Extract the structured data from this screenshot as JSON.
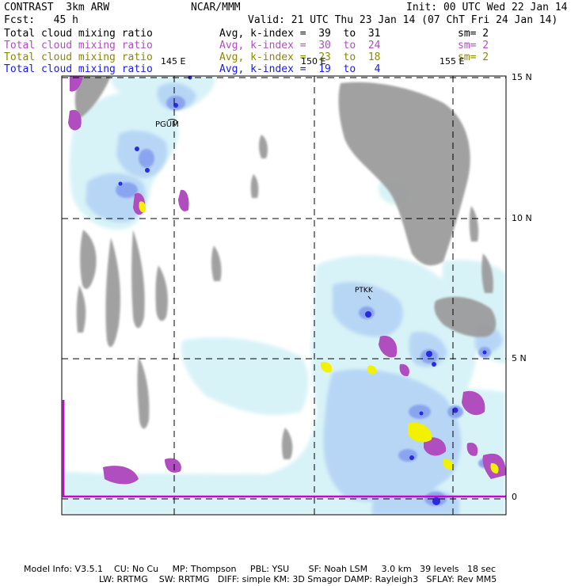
{
  "header": {
    "title": "CONTRAST  3km ARW",
    "center": "NCAR/MMM",
    "init": "Init: 00 UTC Wed 22 Jan 14",
    "fcst": "Fcst:   45 h",
    "valid": "Valid: 21 UTC Thu 23 Jan 14 (07 ChT Fri 24 Jan 14)"
  },
  "legend": [
    {
      "field": "Total cloud mixing ratio",
      "avg": "Avg, k-index =  39  to  31",
      "sm": "sm= 2",
      "color": "#000000"
    },
    {
      "field": "Total cloud mixing ratio",
      "avg": "Avg, k-index =  30  to  24",
      "sm": "sm= 2",
      "color": "#b04dbf"
    },
    {
      "field": "Total cloud mixing ratio",
      "avg": "Avg, k-index =  23  to  18",
      "sm": "sm= 2",
      "color": "#8a8a00"
    },
    {
      "field": "Total cloud mixing ratio",
      "avg": "Avg, k-index =  19  to   4",
      "sm": "",
      "color": "#1a1ae6"
    }
  ],
  "map": {
    "lon_labels": [
      "145 E",
      "150 E",
      "155 E"
    ],
    "lat_labels": [
      "15 N",
      "10 N",
      "5 N",
      "0"
    ],
    "stations": [
      "PGUM",
      "PTKK"
    ]
  },
  "footer": {
    "line1": "Model Info: V3.5.1    CU: No Cu     MP: Thompson     PBL: YSU       SF: Noah LSM     3.0 km   39 levels   18 sec",
    "line2": "LW: RRTMG    SW: RRTMG   DIFF: simple KM: 3D Smagor DAMP: Rayleigh3   SFLAY: Rev MM5"
  },
  "colors": {
    "cloud_light": "#d8f3f7",
    "cloud_mid": "#b7d6f5",
    "cloud_high": "#8aa5ef",
    "cloud_core": "#2a2ae0",
    "precip_gray": "#9a9a9a",
    "mid_purple": "#b04dbf",
    "low_yellow": "#f2f200",
    "border_magenta": "#d000d0"
  }
}
